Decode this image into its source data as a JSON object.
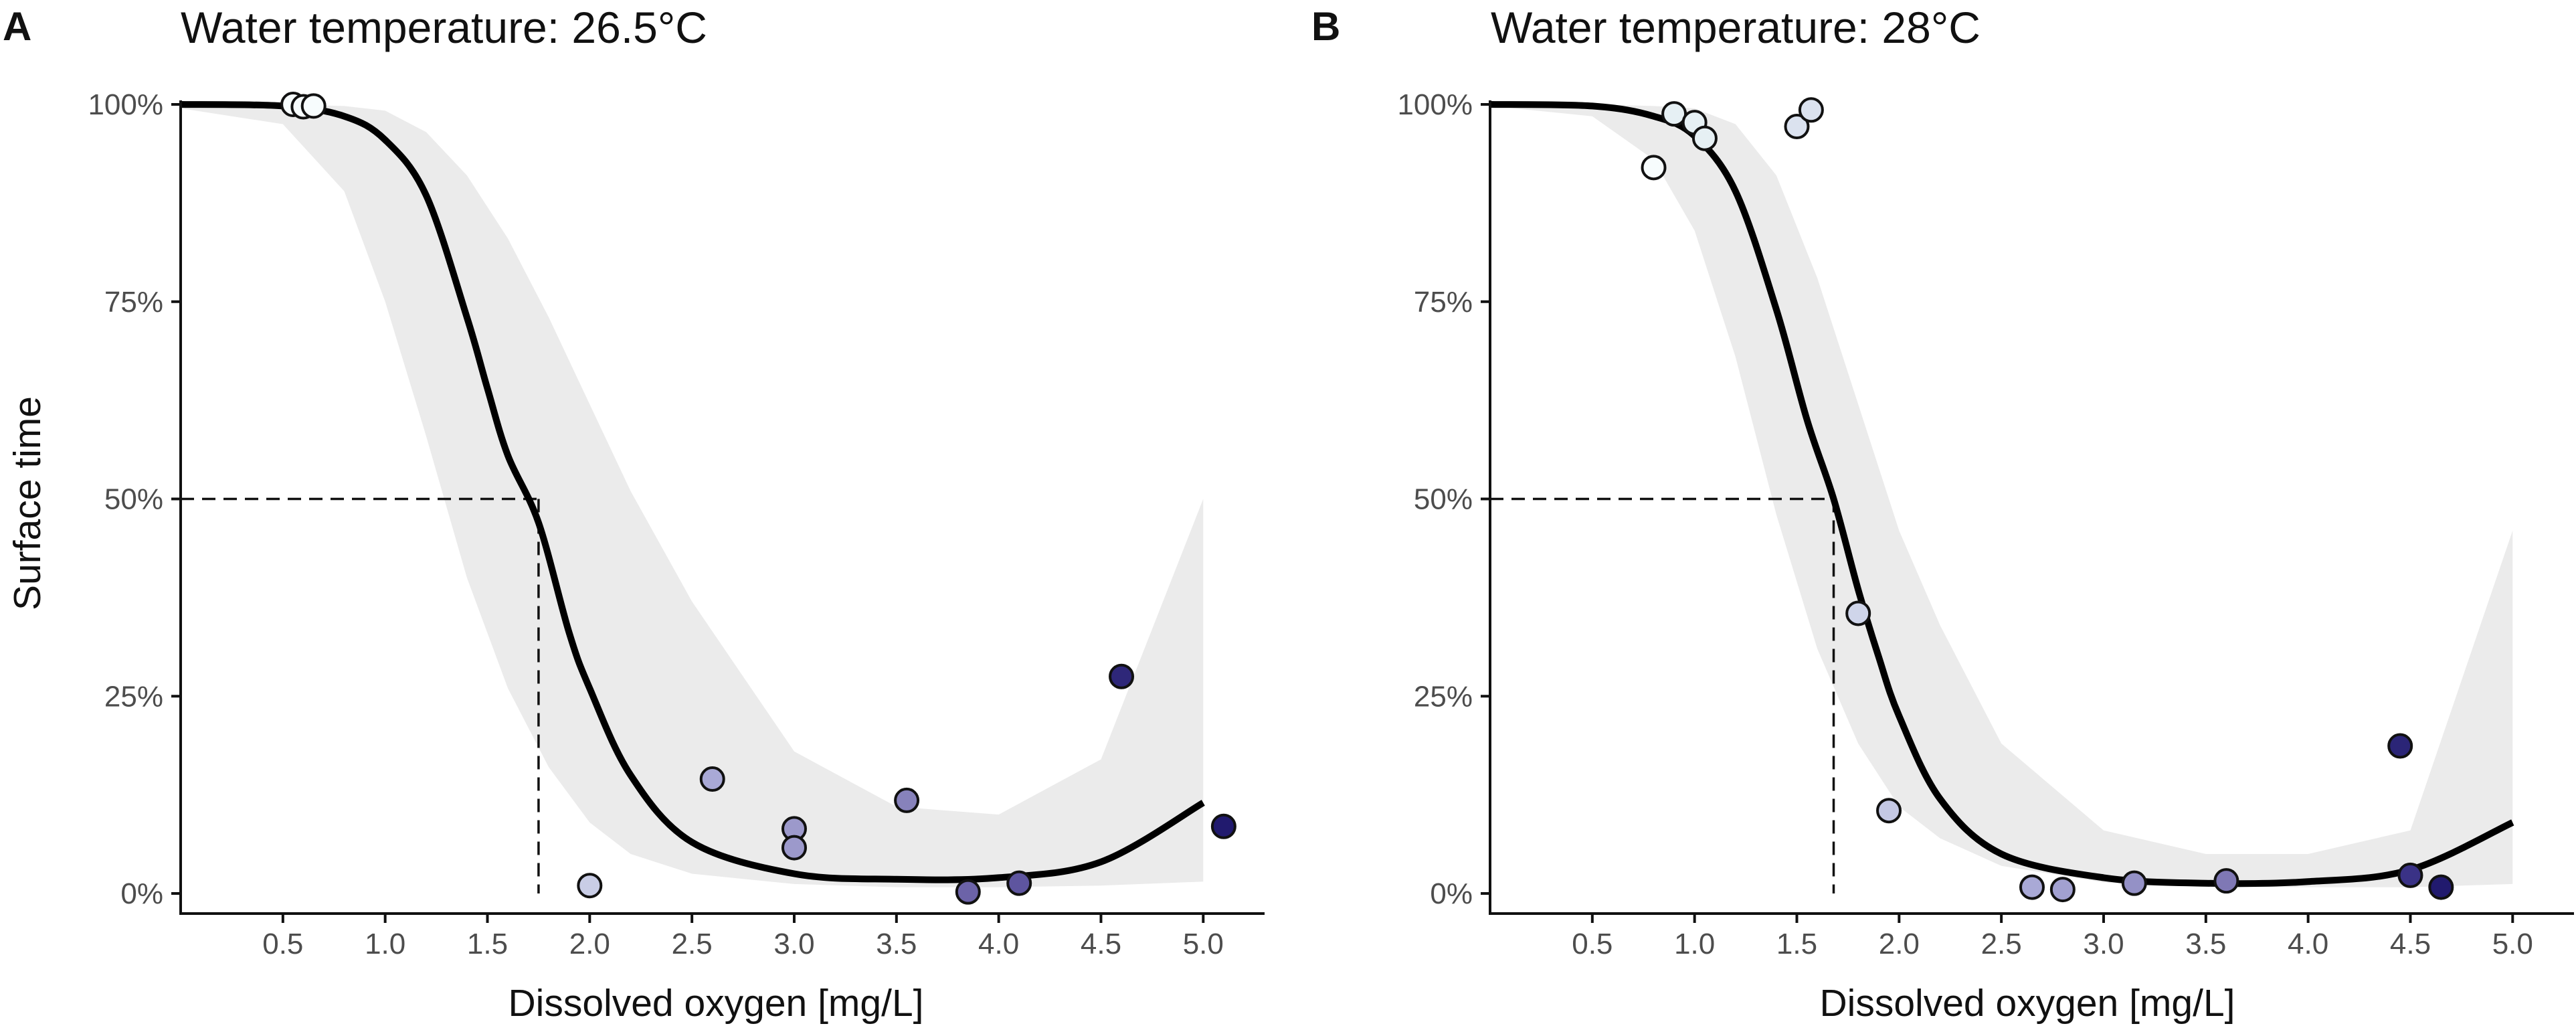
{
  "chart_data": [
    {
      "type": "scatter",
      "panel_label": "A",
      "title": "Water temperature: 26.5°C",
      "xlabel": "Dissolved oxygen [mg/L]",
      "ylabel": "Surface time",
      "xlim": [
        0,
        5.3
      ],
      "ylim": [
        0,
        100
      ],
      "x_ticks": [
        0.5,
        1.0,
        1.5,
        2.0,
        2.5,
        3.0,
        3.5,
        4.0,
        4.5,
        5.0
      ],
      "x_tick_labels": [
        "0.5",
        "1.0",
        "1.5",
        "2.0",
        "2.5",
        "3.0",
        "3.5",
        "4.0",
        "4.5",
        "5.0"
      ],
      "y_ticks": [
        0,
        25,
        50,
        75,
        100
      ],
      "y_tick_labels": [
        "0%",
        "25%",
        "50%",
        "75%",
        "100%"
      ],
      "threshold": {
        "x": 1.75,
        "y": 50
      },
      "fit": {
        "x": [
          0.0,
          0.5,
          0.8,
          1.0,
          1.2,
          1.4,
          1.5,
          1.6,
          1.75,
          1.9,
          2.0,
          2.2,
          2.5,
          3.0,
          3.5,
          4.0,
          4.5,
          5.0
        ],
        "y": [
          100,
          99.8,
          98.5,
          95.5,
          88.5,
          73,
          64,
          55.5,
          47,
          33,
          26,
          15,
          6.5,
          2.5,
          1.8,
          2,
          4,
          11.5
        ]
      },
      "ci": {
        "x": [
          0.0,
          0.5,
          0.8,
          1.0,
          1.2,
          1.4,
          1.6,
          1.8,
          2.0,
          2.2,
          2.5,
          3.0,
          3.5,
          4.0,
          4.5,
          5.0
        ],
        "lower": [
          99.5,
          97.5,
          89,
          75,
          58,
          40,
          26,
          16,
          9,
          5,
          2.5,
          1.2,
          0.8,
          0.8,
          1,
          1.5
        ],
        "upper": [
          100,
          100,
          99.8,
          99.2,
          96.5,
          91,
          83,
          73,
          62,
          51,
          37,
          18,
          11,
          10,
          17,
          50
        ]
      },
      "points": [
        {
          "x": 0.55,
          "y": 100,
          "color": "#f7fcfd"
        },
        {
          "x": 0.6,
          "y": 99.7,
          "color": "#f7fcfd"
        },
        {
          "x": 0.65,
          "y": 99.8,
          "color": "#f7fcfd"
        },
        {
          "x": 2.0,
          "y": 1,
          "color": "#c9cde6"
        },
        {
          "x": 2.6,
          "y": 14.5,
          "color": "#a9a9d6"
        },
        {
          "x": 3.0,
          "y": 8.2,
          "color": "#9c99cb"
        },
        {
          "x": 3.0,
          "y": 5.8,
          "color": "#9c99cb"
        },
        {
          "x": 3.55,
          "y": 11.8,
          "color": "#8782bb"
        },
        {
          "x": 3.85,
          "y": 0.2,
          "color": "#6c63a8"
        },
        {
          "x": 4.1,
          "y": 1.3,
          "color": "#5e559f"
        },
        {
          "x": 4.6,
          "y": 27.5,
          "color": "#2e2779"
        },
        {
          "x": 5.1,
          "y": 8.5,
          "color": "#211a6e"
        }
      ]
    },
    {
      "type": "scatter",
      "panel_label": "B",
      "title": "Water temperature: 28°C",
      "xlabel": "Dissolved oxygen [mg/L]",
      "ylabel": "",
      "xlim": [
        0,
        5.3
      ],
      "ylim": [
        0,
        100
      ],
      "x_ticks": [
        0.5,
        1.0,
        1.5,
        2.0,
        2.5,
        3.0,
        3.5,
        4.0,
        4.5,
        5.0
      ],
      "x_tick_labels": [
        "0.5",
        "1.0",
        "1.5",
        "2.0",
        "2.5",
        "3.0",
        "3.5",
        "4.0",
        "4.5",
        "5.0"
      ],
      "y_ticks": [
        0,
        25,
        50,
        75,
        100
      ],
      "y_tick_labels": [
        "0%",
        "25%",
        "50%",
        "75%",
        "100%"
      ],
      "threshold": {
        "x": 1.68,
        "y": 50
      },
      "fit": {
        "x": [
          0.0,
          0.5,
          0.8,
          1.0,
          1.2,
          1.4,
          1.55,
          1.68,
          1.8,
          1.9,
          2.0,
          2.2,
          2.5,
          3.0,
          3.5,
          4.0,
          4.5,
          5.0
        ],
        "y": [
          100,
          99.8,
          98.5,
          96,
          89,
          74,
          60,
          50,
          38.5,
          30,
          22.5,
          12,
          5,
          2,
          1.3,
          1.5,
          3,
          9
        ]
      },
      "ci": {
        "x": [
          0.0,
          0.5,
          0.8,
          1.0,
          1.2,
          1.4,
          1.6,
          1.8,
          2.0,
          2.2,
          2.5,
          3.0,
          3.5,
          4.0,
          4.5,
          5.0
        ],
        "lower": [
          99.8,
          98.5,
          93,
          84,
          68,
          48,
          31,
          19,
          11,
          7,
          3.5,
          1.4,
          0.8,
          0.8,
          0.8,
          1.2
        ],
        "upper": [
          100,
          100,
          99.8,
          99.5,
          97.5,
          91,
          78,
          62,
          46,
          34,
          19,
          8,
          5,
          5,
          8,
          46
        ]
      },
      "points": [
        {
          "x": 0.8,
          "y": 92,
          "color": "#f7fcfd"
        },
        {
          "x": 0.9,
          "y": 98.8,
          "color": "#e6f0f4"
        },
        {
          "x": 1.0,
          "y": 97.7,
          "color": "#e6f0f4"
        },
        {
          "x": 1.05,
          "y": 95.7,
          "color": "#e6f0f4"
        },
        {
          "x": 1.5,
          "y": 97.2,
          "color": "#dbe2ef"
        },
        {
          "x": 1.57,
          "y": 99.3,
          "color": "#dbe2ef"
        },
        {
          "x": 1.8,
          "y": 35.5,
          "color": "#cfd5ea"
        },
        {
          "x": 1.95,
          "y": 10.5,
          "color": "#c4c8e4"
        },
        {
          "x": 2.65,
          "y": 0.8,
          "color": "#a9a9d6"
        },
        {
          "x": 2.8,
          "y": 0.5,
          "color": "#a2a1d1"
        },
        {
          "x": 3.15,
          "y": 1.3,
          "color": "#9491c6"
        },
        {
          "x": 3.6,
          "y": 1.6,
          "color": "#7f78b5"
        },
        {
          "x": 4.45,
          "y": 18.7,
          "color": "#2b2577"
        },
        {
          "x": 4.5,
          "y": 2.3,
          "color": "#3a3286"
        },
        {
          "x": 4.65,
          "y": 0.8,
          "color": "#211a6e"
        }
      ]
    }
  ]
}
